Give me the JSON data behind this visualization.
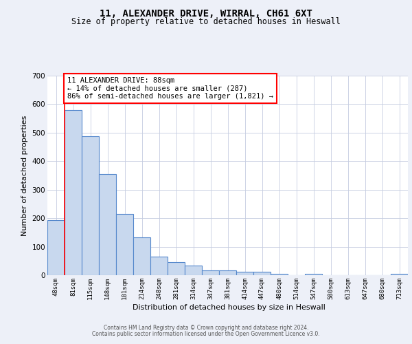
{
  "title1": "11, ALEXANDER DRIVE, WIRRAL, CH61 6XT",
  "title2": "Size of property relative to detached houses in Heswall",
  "xlabel": "Distribution of detached houses by size in Heswall",
  "ylabel": "Number of detached properties",
  "categories": [
    "48sqm",
    "81sqm",
    "115sqm",
    "148sqm",
    "181sqm",
    "214sqm",
    "248sqm",
    "281sqm",
    "314sqm",
    "347sqm",
    "381sqm",
    "414sqm",
    "447sqm",
    "480sqm",
    "514sqm",
    "547sqm",
    "580sqm",
    "613sqm",
    "647sqm",
    "680sqm",
    "713sqm"
  ],
  "values": [
    193,
    580,
    487,
    356,
    216,
    133,
    64,
    47,
    35,
    17,
    17,
    11,
    11,
    6,
    0,
    5,
    0,
    0,
    0,
    0,
    5
  ],
  "bar_color": "#c8d8ee",
  "bar_edge_color": "#5588cc",
  "ylim_max": 700,
  "yticks": [
    0,
    100,
    200,
    300,
    400,
    500,
    600,
    700
  ],
  "annotation_text": "11 ALEXANDER DRIVE: 88sqm\n← 14% of detached houses are smaller (287)\n86% of semi-detached houses are larger (1,821) →",
  "footer1": "Contains HM Land Registry data © Crown copyright and database right 2024.",
  "footer2": "Contains public sector information licensed under the Open Government Licence v3.0.",
  "bg_color": "#edf0f8",
  "plot_bg_color": "white",
  "grid_color": "#c5cce0"
}
